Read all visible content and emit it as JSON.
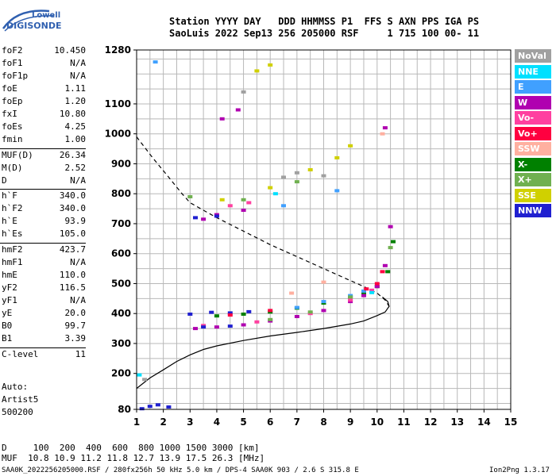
{
  "logo": {
    "line1": "Lowell",
    "line2": "DIGISONDE"
  },
  "header": {
    "row1": "Station YYYY DAY   DDD HHMMSS P1  FFS S AXN PPS IGA PS",
    "row2": "SaoLuis 2022 Sep13 256 205000 RSF     1 715 100 00- 11"
  },
  "params": [
    {
      "label": "foF2",
      "value": "10.450"
    },
    {
      "label": "foF1",
      "value": "N/A"
    },
    {
      "label": "foF1p",
      "value": "N/A"
    },
    {
      "label": "foE",
      "value": "1.11"
    },
    {
      "label": "foEp",
      "value": "1.20"
    },
    {
      "label": "fxI",
      "value": "10.80"
    },
    {
      "label": "foEs",
      "value": "4.25"
    },
    {
      "label": "fmin",
      "value": "1.00"
    },
    {
      "label": "MUF(D)",
      "value": "26.34"
    },
    {
      "label": "M(D)",
      "value": "2.52"
    },
    {
      "label": "D",
      "value": "N/A"
    },
    {
      "label": "h`F",
      "value": "340.0"
    },
    {
      "label": "h`F2",
      "value": "340.0"
    },
    {
      "label": "h`E",
      "value": "93.9"
    },
    {
      "label": "h`Es",
      "value": "105.0"
    },
    {
      "label": "hmF2",
      "value": "423.7"
    },
    {
      "label": "hmF1",
      "value": "N/A"
    },
    {
      "label": "hmE",
      "value": "110.0"
    },
    {
      "label": "yF2",
      "value": "116.5"
    },
    {
      "label": "yF1",
      "value": "N/A"
    },
    {
      "label": "yE",
      "value": "20.0"
    },
    {
      "label": "B0",
      "value": "99.7"
    },
    {
      "label": "B1",
      "value": "3.39"
    },
    {
      "label": "C-level",
      "value": "11"
    }
  ],
  "auto": {
    "line1": "Auto:",
    "line2": "Artist5",
    "line3": "500200"
  },
  "legend": [
    {
      "name": "NoVal",
      "color": "#a0a0a0"
    },
    {
      "name": "NNE",
      "color": "#00e0ff"
    },
    {
      "name": "E",
      "color": "#40a0ff"
    },
    {
      "name": "W",
      "color": "#b000b0"
    },
    {
      "name": "Vo-",
      "color": "#ff40a0"
    },
    {
      "name": "Vo+",
      "color": "#ff0040"
    },
    {
      "name": "SSW",
      "color": "#ffb0a0"
    },
    {
      "name": "X-",
      "color": "#008000"
    },
    {
      "name": "X+",
      "color": "#70b050"
    },
    {
      "name": "SSE",
      "color": "#d0d000"
    },
    {
      "name": "NNW",
      "color": "#2020d0"
    }
  ],
  "bottom": {
    "row1": "D     100  200  400  600  800 1000 1500 3000 [km]",
    "row2": "MUF  10.8 10.9 11.2 11.8 12.7 13.9 17.5 26.3 [MHz]"
  },
  "footer": {
    "left": "SAA0K_2022256205000.RSF / 280fx256h 50 kHz 5.0 km / DPS-4 SAA0K 903 / 2.6 S 315.8 E",
    "right": "Ion2Png 1.3.17"
  },
  "chart_data": {
    "type": "scatter",
    "xlim": [
      1,
      15
    ],
    "ylim": [
      80,
      1280
    ],
    "x_ticks": [
      1,
      2,
      3,
      4,
      5,
      6,
      7,
      8,
      9,
      10,
      11,
      12,
      13,
      14,
      15
    ],
    "y_ticks": [
      80,
      200,
      300,
      400,
      500,
      600,
      700,
      800,
      900,
      1000,
      1100,
      1280
    ],
    "y_grid_step": 50,
    "grid": true,
    "series": [
      {
        "name": "X-",
        "color": "#008000",
        "points": [
          [
            4.0,
            392
          ],
          [
            5.0,
            398
          ],
          [
            6.0,
            405
          ],
          [
            7.0,
            418
          ],
          [
            8.0,
            435
          ],
          [
            9.0,
            455
          ],
          [
            9.5,
            468
          ],
          [
            10.0,
            490
          ],
          [
            10.4,
            540
          ],
          [
            10.6,
            640
          ]
        ]
      },
      {
        "name": "W",
        "color": "#b000b0",
        "points": [
          [
            3.2,
            350
          ],
          [
            4.0,
            355
          ],
          [
            5.0,
            362
          ],
          [
            6.0,
            375
          ],
          [
            7.0,
            390
          ],
          [
            8.0,
            410
          ],
          [
            9.0,
            440
          ],
          [
            9.5,
            460
          ],
          [
            10.0,
            490
          ],
          [
            10.3,
            560
          ],
          [
            10.5,
            690
          ],
          [
            4.0,
            730
          ],
          [
            5.0,
            745
          ],
          [
            3.5,
            715
          ],
          [
            4.2,
            1050
          ],
          [
            4.8,
            1080
          ],
          [
            10.3,
            1020
          ]
        ]
      },
      {
        "name": "Vo-",
        "color": "#ff40a0",
        "points": [
          [
            3.5,
            360
          ],
          [
            5.5,
            372
          ],
          [
            7.5,
            400
          ],
          [
            9.0,
            445
          ],
          [
            9.8,
            478
          ],
          [
            4.5,
            760
          ],
          [
            5.2,
            770
          ]
        ]
      },
      {
        "name": "NNW",
        "color": "#2020d0",
        "points": [
          [
            1.2,
            82
          ],
          [
            1.5,
            90
          ],
          [
            1.8,
            95
          ],
          [
            2.2,
            88
          ],
          [
            3.0,
            398
          ],
          [
            3.8,
            404
          ],
          [
            4.5,
            402
          ],
          [
            5.2,
            406
          ],
          [
            3.5,
            355
          ],
          [
            4.5,
            358
          ],
          [
            3.2,
            720
          ],
          [
            4.0,
            725
          ]
        ]
      },
      {
        "name": "E",
        "color": "#40a0ff",
        "points": [
          [
            7.0,
            420
          ],
          [
            8.0,
            440
          ],
          [
            9.0,
            460
          ],
          [
            9.5,
            475
          ],
          [
            6.5,
            760
          ],
          [
            8.5,
            810
          ],
          [
            1.7,
            1240
          ]
        ]
      },
      {
        "name": "X+",
        "color": "#70b050",
        "points": [
          [
            6.0,
            380
          ],
          [
            7.5,
            405
          ],
          [
            9.0,
            455
          ],
          [
            10.5,
            620
          ],
          [
            5.0,
            780
          ],
          [
            7.0,
            840
          ],
          [
            3.0,
            790
          ]
        ]
      },
      {
        "name": "SSE",
        "color": "#d0d000",
        "points": [
          [
            6.0,
            820
          ],
          [
            7.5,
            880
          ],
          [
            8.5,
            920
          ],
          [
            9.0,
            960
          ],
          [
            5.5,
            1210
          ],
          [
            6.0,
            1230
          ],
          [
            4.2,
            780
          ]
        ]
      },
      {
        "name": "NoVal",
        "color": "#a0a0a0",
        "points": [
          [
            6.5,
            855
          ],
          [
            7.0,
            870
          ],
          [
            8.0,
            860
          ],
          [
            5.0,
            1140
          ],
          [
            1.3,
            180
          ]
        ]
      },
      {
        "name": "Vo+",
        "color": "#ff0040",
        "points": [
          [
            10.0,
            500
          ],
          [
            10.2,
            540
          ],
          [
            4.5,
            395
          ],
          [
            6.0,
            410
          ],
          [
            9.6,
            482
          ]
        ]
      },
      {
        "name": "NNE",
        "color": "#00e0ff",
        "points": [
          [
            6.2,
            800
          ],
          [
            9.8,
            470
          ],
          [
            1.1,
            195
          ]
        ]
      },
      {
        "name": "SSW",
        "color": "#ffb0a0",
        "points": [
          [
            8.0,
            505
          ],
          [
            6.8,
            468
          ],
          [
            10.2,
            1000
          ]
        ]
      }
    ],
    "profile_solid": [
      [
        1.0,
        150
      ],
      [
        1.5,
        185
      ],
      [
        2.0,
        212
      ],
      [
        2.5,
        240
      ],
      [
        3.0,
        262
      ],
      [
        3.5,
        280
      ],
      [
        4.0,
        292
      ],
      [
        5.0,
        310
      ],
      [
        6.0,
        325
      ],
      [
        7.0,
        337
      ],
      [
        8.0,
        350
      ],
      [
        9.0,
        365
      ],
      [
        9.5,
        375
      ],
      [
        10.0,
        393
      ],
      [
        10.3,
        405
      ],
      [
        10.45,
        424
      ],
      [
        10.4,
        440
      ],
      [
        10.2,
        455
      ]
    ],
    "profile_dashed": [
      [
        1.0,
        990
      ],
      [
        1.6,
        920
      ],
      [
        2.2,
        855
      ],
      [
        2.7,
        800
      ],
      [
        3.0,
        770
      ],
      [
        3.5,
        745
      ],
      [
        4.0,
        720
      ],
      [
        5.0,
        675
      ],
      [
        6.0,
        630
      ],
      [
        7.0,
        590
      ],
      [
        8.0,
        550
      ],
      [
        9.0,
        510
      ],
      [
        9.5,
        490
      ],
      [
        10.0,
        468
      ],
      [
        10.3,
        445
      ],
      [
        10.45,
        424
      ]
    ]
  }
}
